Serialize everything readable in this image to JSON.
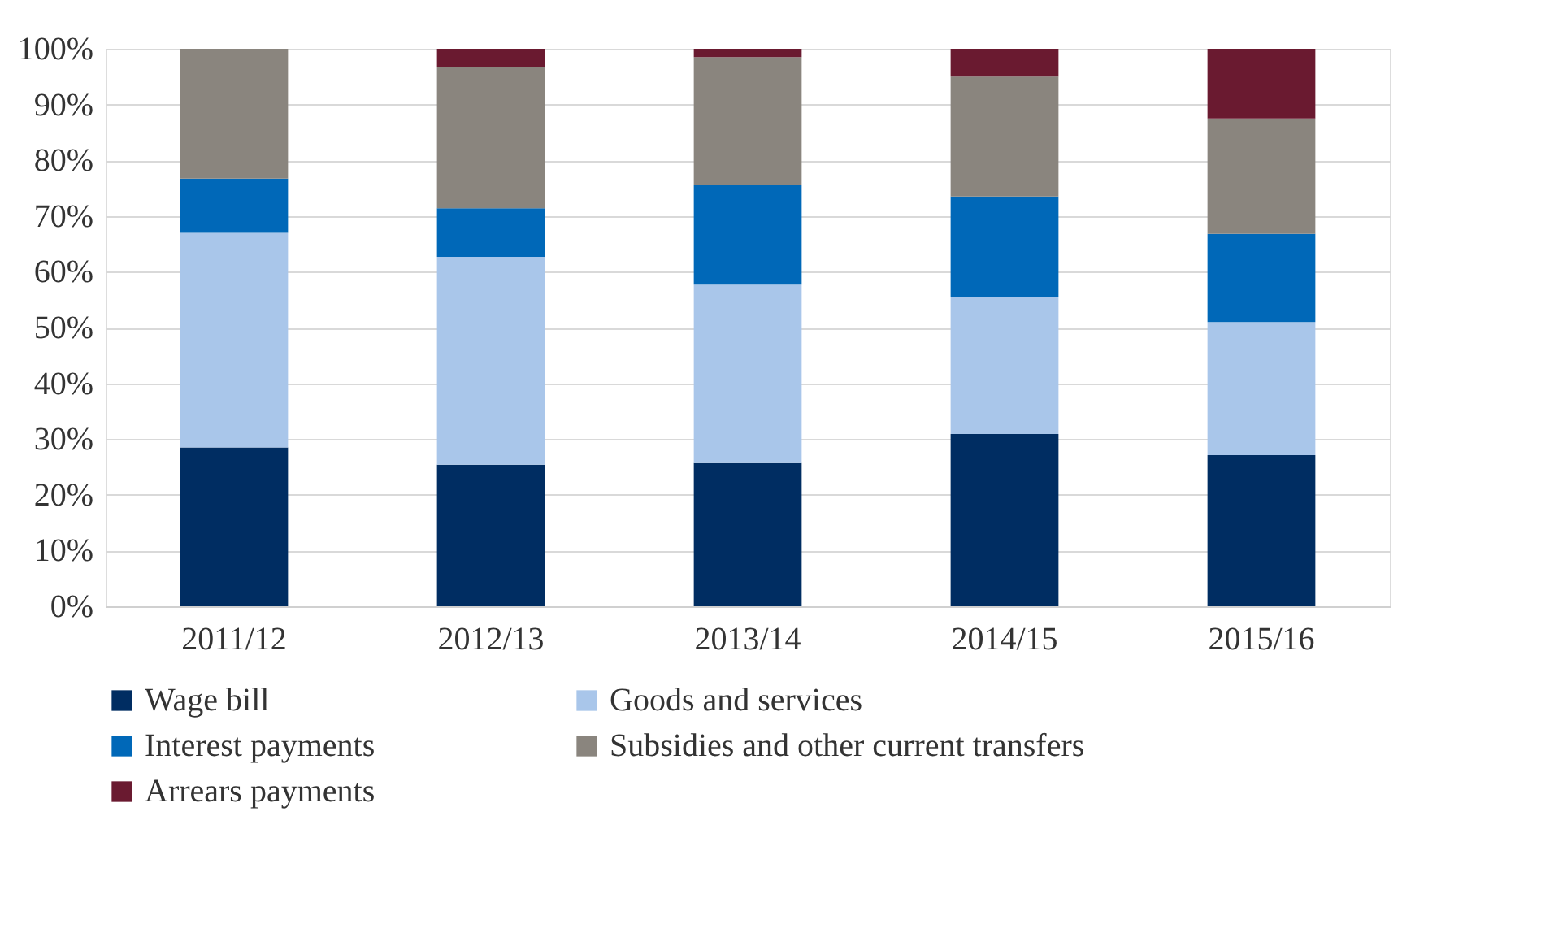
{
  "chart_data": {
    "type": "bar",
    "stacked": true,
    "categories": [
      "2011/12",
      "2012/13",
      "2013/14",
      "2014/15",
      "2015/16"
    ],
    "series": [
      {
        "name": "Wage bill",
        "color": "#002d62",
        "values": [
          28.5,
          25.4,
          25.7,
          30.9,
          27.1
        ]
      },
      {
        "name": "Goods and services",
        "color": "#a9c6ea",
        "values": [
          38.5,
          37.3,
          32.0,
          24.5,
          23.9
        ]
      },
      {
        "name": "Interest payments",
        "color": "#0068b8",
        "values": [
          9.7,
          8.7,
          17.8,
          18.1,
          15.8
        ]
      },
      {
        "name": "Subsidies and other current transfers",
        "color": "#8a857e",
        "values": [
          23.3,
          25.4,
          23.0,
          21.5,
          20.7
        ]
      },
      {
        "name": "Arrears payments",
        "color": "#6a1a30",
        "values": [
          0,
          3.2,
          1.5,
          5.0,
          12.5
        ]
      }
    ],
    "ylim": [
      0,
      100
    ],
    "yticks": [
      {
        "value": 0,
        "label": "0%"
      },
      {
        "value": 10,
        "label": "10%"
      },
      {
        "value": 20,
        "label": "20%"
      },
      {
        "value": 30,
        "label": "30%"
      },
      {
        "value": 40,
        "label": "40%"
      },
      {
        "value": 50,
        "label": "50%"
      },
      {
        "value": 60,
        "label": "60%"
      },
      {
        "value": 70,
        "label": "70%"
      },
      {
        "value": 80,
        "label": "80%"
      },
      {
        "value": 90,
        "label": "90%"
      },
      {
        "value": 100,
        "label": "100%"
      }
    ],
    "grid": "y",
    "legend": "bottom"
  }
}
